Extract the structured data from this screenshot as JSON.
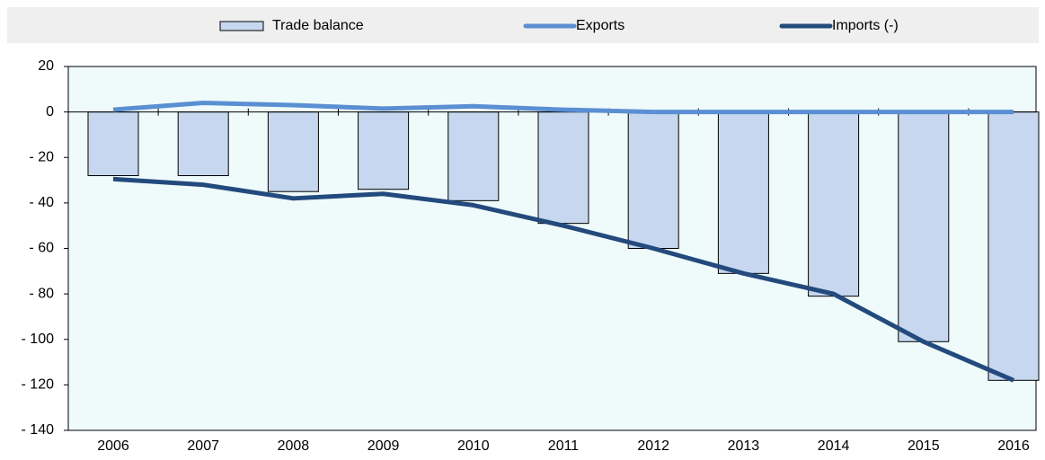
{
  "chart_data": {
    "type": "bar_line",
    "categories": [
      "2006",
      "2007",
      "2008",
      "2009",
      "2010",
      "2011",
      "2012",
      "2013",
      "2014",
      "2015",
      "2016"
    ],
    "series": [
      {
        "name": "Trade balance",
        "type": "bar",
        "color": "#c6d7ef",
        "values": [
          -28,
          -28,
          -35,
          -34,
          -39,
          -49,
          -60,
          -71,
          -81,
          -101,
          -118
        ]
      },
      {
        "name": "Exports",
        "type": "line",
        "color": "#5b8fd3",
        "values": [
          1,
          4,
          3,
          1.5,
          2.5,
          1,
          0,
          0,
          0,
          0,
          0
        ]
      },
      {
        "name": "Imports (-)",
        "type": "line",
        "color": "#234a7d",
        "values": [
          -29.5,
          -32,
          -38,
          -36,
          -41,
          -50,
          -60,
          -71,
          -80,
          -101,
          -118
        ]
      }
    ],
    "ylim": [
      -140,
      20
    ],
    "yticks": [
      20,
      0,
      {
        "value": -20,
        "label": "- 20"
      },
      {
        "value": -40,
        "label": "- 40"
      },
      {
        "value": -60,
        "label": "- 60"
      },
      {
        "value": -80,
        "label": "- 80"
      },
      {
        "value": -100,
        "label": "- 100"
      },
      {
        "value": -120,
        "label": "- 120"
      },
      {
        "value": -140,
        "label": "- 140"
      }
    ],
    "legend": "top"
  }
}
